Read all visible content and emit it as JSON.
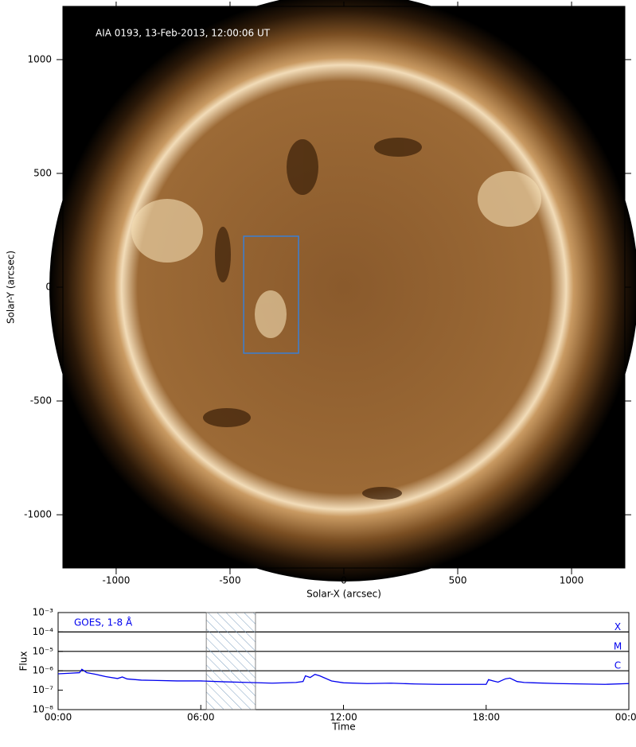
{
  "chart_data": [
    {
      "type": "image",
      "annotation": "AIA 0193, 13-Feb-2013, 12:00:06 UT",
      "xlabel": "Solar-X (arcsec)",
      "ylabel": "Solar-Y (arcsec)",
      "xlim": [
        -1234,
        1234
      ],
      "ylim": [
        -1234,
        1234
      ],
      "xticks": [
        -1000,
        -500,
        0,
        500,
        1000
      ],
      "yticks": [
        -1000,
        -500,
        0,
        500,
        1000
      ],
      "region": {
        "x": [
          -440,
          -199
        ],
        "y": [
          -290,
          224
        ],
        "color": "#3a7fd5"
      }
    },
    {
      "type": "line",
      "log_scale": true,
      "xlabel": "Time",
      "ylabel": "Flux",
      "xlim": [
        0,
        24
      ],
      "ylim": [
        1e-08,
        0.001
      ],
      "xticks": [
        {
          "value": 0,
          "label": "00:00"
        },
        {
          "value": 6,
          "label": "06:00"
        },
        {
          "value": 12,
          "label": "12:00"
        },
        {
          "value": 18,
          "label": "18:00"
        },
        {
          "value": 24,
          "label": "00:00"
        }
      ],
      "yticks": [
        {
          "value": 1e-08,
          "label": "10⁻⁸"
        },
        {
          "value": 1e-07,
          "label": "10⁻⁷"
        },
        {
          "value": 1e-06,
          "label": "10⁻⁶"
        },
        {
          "value": 1e-05,
          "label": "10⁻⁵"
        },
        {
          "value": 0.0001,
          "label": "10⁻⁴"
        },
        {
          "value": 0.001,
          "label": "10⁻³"
        }
      ],
      "class_levels": [
        {
          "value": 0.0001,
          "label": "X"
        },
        {
          "value": 1e-05,
          "label": "M"
        },
        {
          "value": 1e-06,
          "label": "C"
        }
      ],
      "highlight": [
        6.23,
        8.3
      ],
      "x": [
        0,
        0.5,
        0.9,
        1.0,
        1.2,
        1.6,
        2.0,
        2.5,
        2.7,
        2.9,
        3.5,
        4,
        5,
        6,
        7,
        8,
        9,
        10,
        10.3,
        10.4,
        10.6,
        10.8,
        11.0,
        11.5,
        12,
        13,
        14,
        15,
        16,
        17,
        18,
        18.1,
        18.3,
        18.5,
        18.8,
        19.0,
        19.3,
        19.6,
        20,
        21,
        22,
        23,
        24
      ],
      "series": [
        {
          "name": "GOES, 1-8 Å",
          "color": "#0000ee",
          "values": [
            7e-07,
            7.5e-07,
            8e-07,
            1.2e-06,
            8e-07,
            6.5e-07,
            5e-07,
            4e-07,
            4.8e-07,
            3.8e-07,
            3.3e-07,
            3.2e-07,
            3e-07,
            3e-07,
            2.7e-07,
            2.5e-07,
            2.3e-07,
            2.5e-07,
            2.8e-07,
            5.5e-07,
            4.5e-07,
            6.5e-07,
            5.5e-07,
            3e-07,
            2.4e-07,
            2.2e-07,
            2.3e-07,
            2.1e-07,
            2e-07,
            2e-07,
            2e-07,
            3.5e-07,
            3e-07,
            2.6e-07,
            3.8e-07,
            4.2e-07,
            2.8e-07,
            2.5e-07,
            2.4e-07,
            2.2e-07,
            2.1e-07,
            2e-07,
            2.2e-07
          ]
        }
      ]
    }
  ]
}
